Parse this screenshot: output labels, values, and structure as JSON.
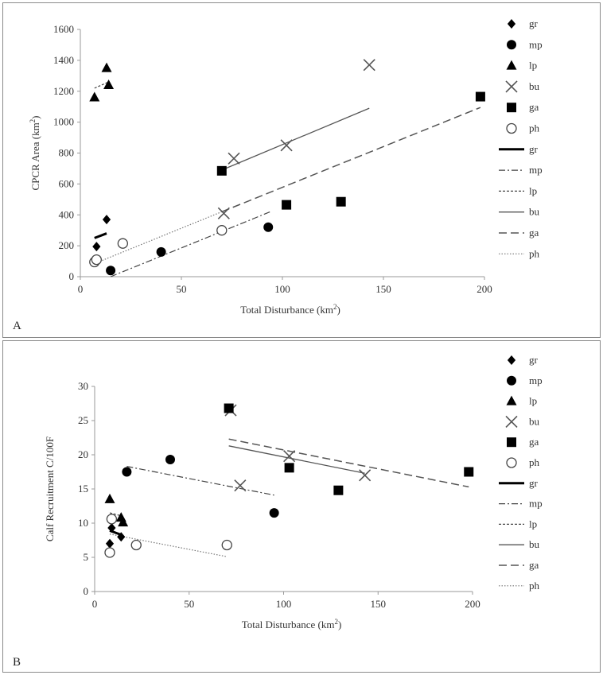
{
  "panels": [
    {
      "panel_label": "A",
      "chart_data": {
        "type": "scatter",
        "xlabel_base": "Total Disturbance (km",
        "ylabel_base": "CPCR Area (km",
        "unit_exp": "2",
        "xlim": [
          0,
          200
        ],
        "ylim": [
          0,
          1600
        ],
        "xticks": [
          0,
          50,
          100,
          150,
          200
        ],
        "yticks": [
          0,
          200,
          400,
          600,
          800,
          1000,
          1200,
          1400,
          1600
        ],
        "legend_position": "right",
        "series": [
          {
            "name": "gr",
            "marker": "diamond",
            "points": [
              [
                8,
                195
              ],
              [
                13,
                370
              ]
            ]
          },
          {
            "name": "mp",
            "marker": "circle",
            "points": [
              [
                15,
                40
              ],
              [
                40,
                160
              ],
              [
                93,
                320
              ]
            ]
          },
          {
            "name": "lp",
            "marker": "triangle",
            "points": [
              [
                7,
                1160
              ],
              [
                13,
                1350
              ],
              [
                14,
                1240
              ]
            ]
          },
          {
            "name": "bu",
            "marker": "x",
            "points": [
              [
                71,
                410
              ],
              [
                76,
                765
              ],
              [
                102,
                850
              ],
              [
                143,
                1370
              ]
            ]
          },
          {
            "name": "ga",
            "marker": "square",
            "points": [
              [
                70,
                685
              ],
              [
                102,
                465
              ],
              [
                129,
                485
              ],
              [
                198,
                1165
              ]
            ]
          },
          {
            "name": "ph",
            "marker": "open-circle",
            "points": [
              [
                7,
                95
              ],
              [
                8,
                110
              ],
              [
                21,
                215
              ],
              [
                70,
                300
              ]
            ]
          }
        ],
        "trendlines": [
          {
            "name": "gr",
            "style": "thick",
            "from": [
              7,
              250
            ],
            "to": [
              13,
              280
            ]
          },
          {
            "name": "mp",
            "style": "dashdot",
            "from": [
              15,
              0
            ],
            "to": [
              94,
              420
            ]
          },
          {
            "name": "lp",
            "style": "dashed-short",
            "from": [
              7,
              1220
            ],
            "to": [
              14,
              1260
            ]
          },
          {
            "name": "bu",
            "style": "solid",
            "from": [
              70,
              690
            ],
            "to": [
              143,
              1090
            ]
          },
          {
            "name": "ga",
            "style": "dashed-long",
            "from": [
              70,
              420
            ],
            "to": [
              198,
              1095
            ]
          },
          {
            "name": "ph",
            "style": "dotted",
            "from": [
              7,
              85
            ],
            "to": [
              70,
              420
            ]
          }
        ]
      }
    },
    {
      "panel_label": "B",
      "chart_data": {
        "type": "scatter",
        "xlabel_base": "Total Disturbance (km",
        "ylabel_base": "Calf Recruitment C/100F",
        "unit_exp": "2",
        "xlim": [
          0,
          200
        ],
        "ylim": [
          0,
          30
        ],
        "xticks": [
          0,
          50,
          100,
          150,
          200
        ],
        "yticks": [
          0,
          5,
          10,
          15,
          20,
          25,
          30
        ],
        "legend_position": "right",
        "series": [
          {
            "name": "gr",
            "marker": "diamond",
            "points": [
              [
                8,
                7
              ],
              [
                9,
                9.3
              ],
              [
                14,
                8
              ]
            ]
          },
          {
            "name": "mp",
            "marker": "circle",
            "points": [
              [
                17,
                17.5
              ],
              [
                40,
                19.3
              ],
              [
                95,
                11.5
              ]
            ]
          },
          {
            "name": "lp",
            "marker": "triangle",
            "points": [
              [
                8,
                13.5
              ],
              [
                14,
                10.8
              ],
              [
                15,
                10.1
              ]
            ]
          },
          {
            "name": "bu",
            "marker": "x",
            "points": [
              [
                72,
                26.5
              ],
              [
                77,
                15.5
              ],
              [
                103,
                19.8
              ],
              [
                143,
                17
              ]
            ]
          },
          {
            "name": "ga",
            "marker": "square",
            "points": [
              [
                71,
                26.8
              ],
              [
                103,
                18.1
              ],
              [
                129,
                14.8
              ],
              [
                198,
                17.5
              ]
            ]
          },
          {
            "name": "ph",
            "marker": "open-circle",
            "points": [
              [
                8,
                5.7
              ],
              [
                9,
                10.6
              ],
              [
                22,
                6.8
              ],
              [
                70,
                6.8
              ]
            ]
          }
        ],
        "trendlines": [
          {
            "name": "gr",
            "style": "thick",
            "from": [
              8,
              8.9
            ],
            "to": [
              14,
              8.3
            ]
          },
          {
            "name": "mp",
            "style": "dashdot",
            "from": [
              17,
              18.3
            ],
            "to": [
              95,
              14.1
            ]
          },
          {
            "name": "lp",
            "style": "dashed-short",
            "from": [
              8,
              11.5
            ],
            "to": [
              15,
              11.0
            ]
          },
          {
            "name": "bu",
            "style": "solid",
            "from": [
              71,
              21.3
            ],
            "to": [
              143,
              17.3
            ]
          },
          {
            "name": "ga",
            "style": "dashed-long",
            "from": [
              71,
              22.3
            ],
            "to": [
              198,
              15.3
            ]
          },
          {
            "name": "ph",
            "style": "dotted",
            "from": [
              8,
              8.4
            ],
            "to": [
              70,
              5.1
            ]
          }
        ]
      }
    }
  ],
  "legend": {
    "markers": [
      {
        "name": "gr",
        "marker": "diamond"
      },
      {
        "name": "mp",
        "marker": "circle"
      },
      {
        "name": "lp",
        "marker": "triangle"
      },
      {
        "name": "bu",
        "marker": "x"
      },
      {
        "name": "ga",
        "marker": "square"
      },
      {
        "name": "ph",
        "marker": "open-circle"
      }
    ],
    "lines": [
      {
        "name": "gr",
        "style": "thick"
      },
      {
        "name": "mp",
        "style": "dashdot"
      },
      {
        "name": "lp",
        "style": "dashed-short"
      },
      {
        "name": "bu",
        "style": "solid"
      },
      {
        "name": "ga",
        "style": "dashed-long"
      },
      {
        "name": "ph",
        "style": "dotted"
      }
    ]
  },
  "colors": {
    "marker": "#000000",
    "x_marker": "#555555",
    "axis": "#9a9a9a",
    "line_gr": "#000000",
    "line_mp": "#444444",
    "line_lp": "#444444",
    "line_bu": "#555555",
    "line_ga": "#555555",
    "line_ph": "#777777"
  }
}
